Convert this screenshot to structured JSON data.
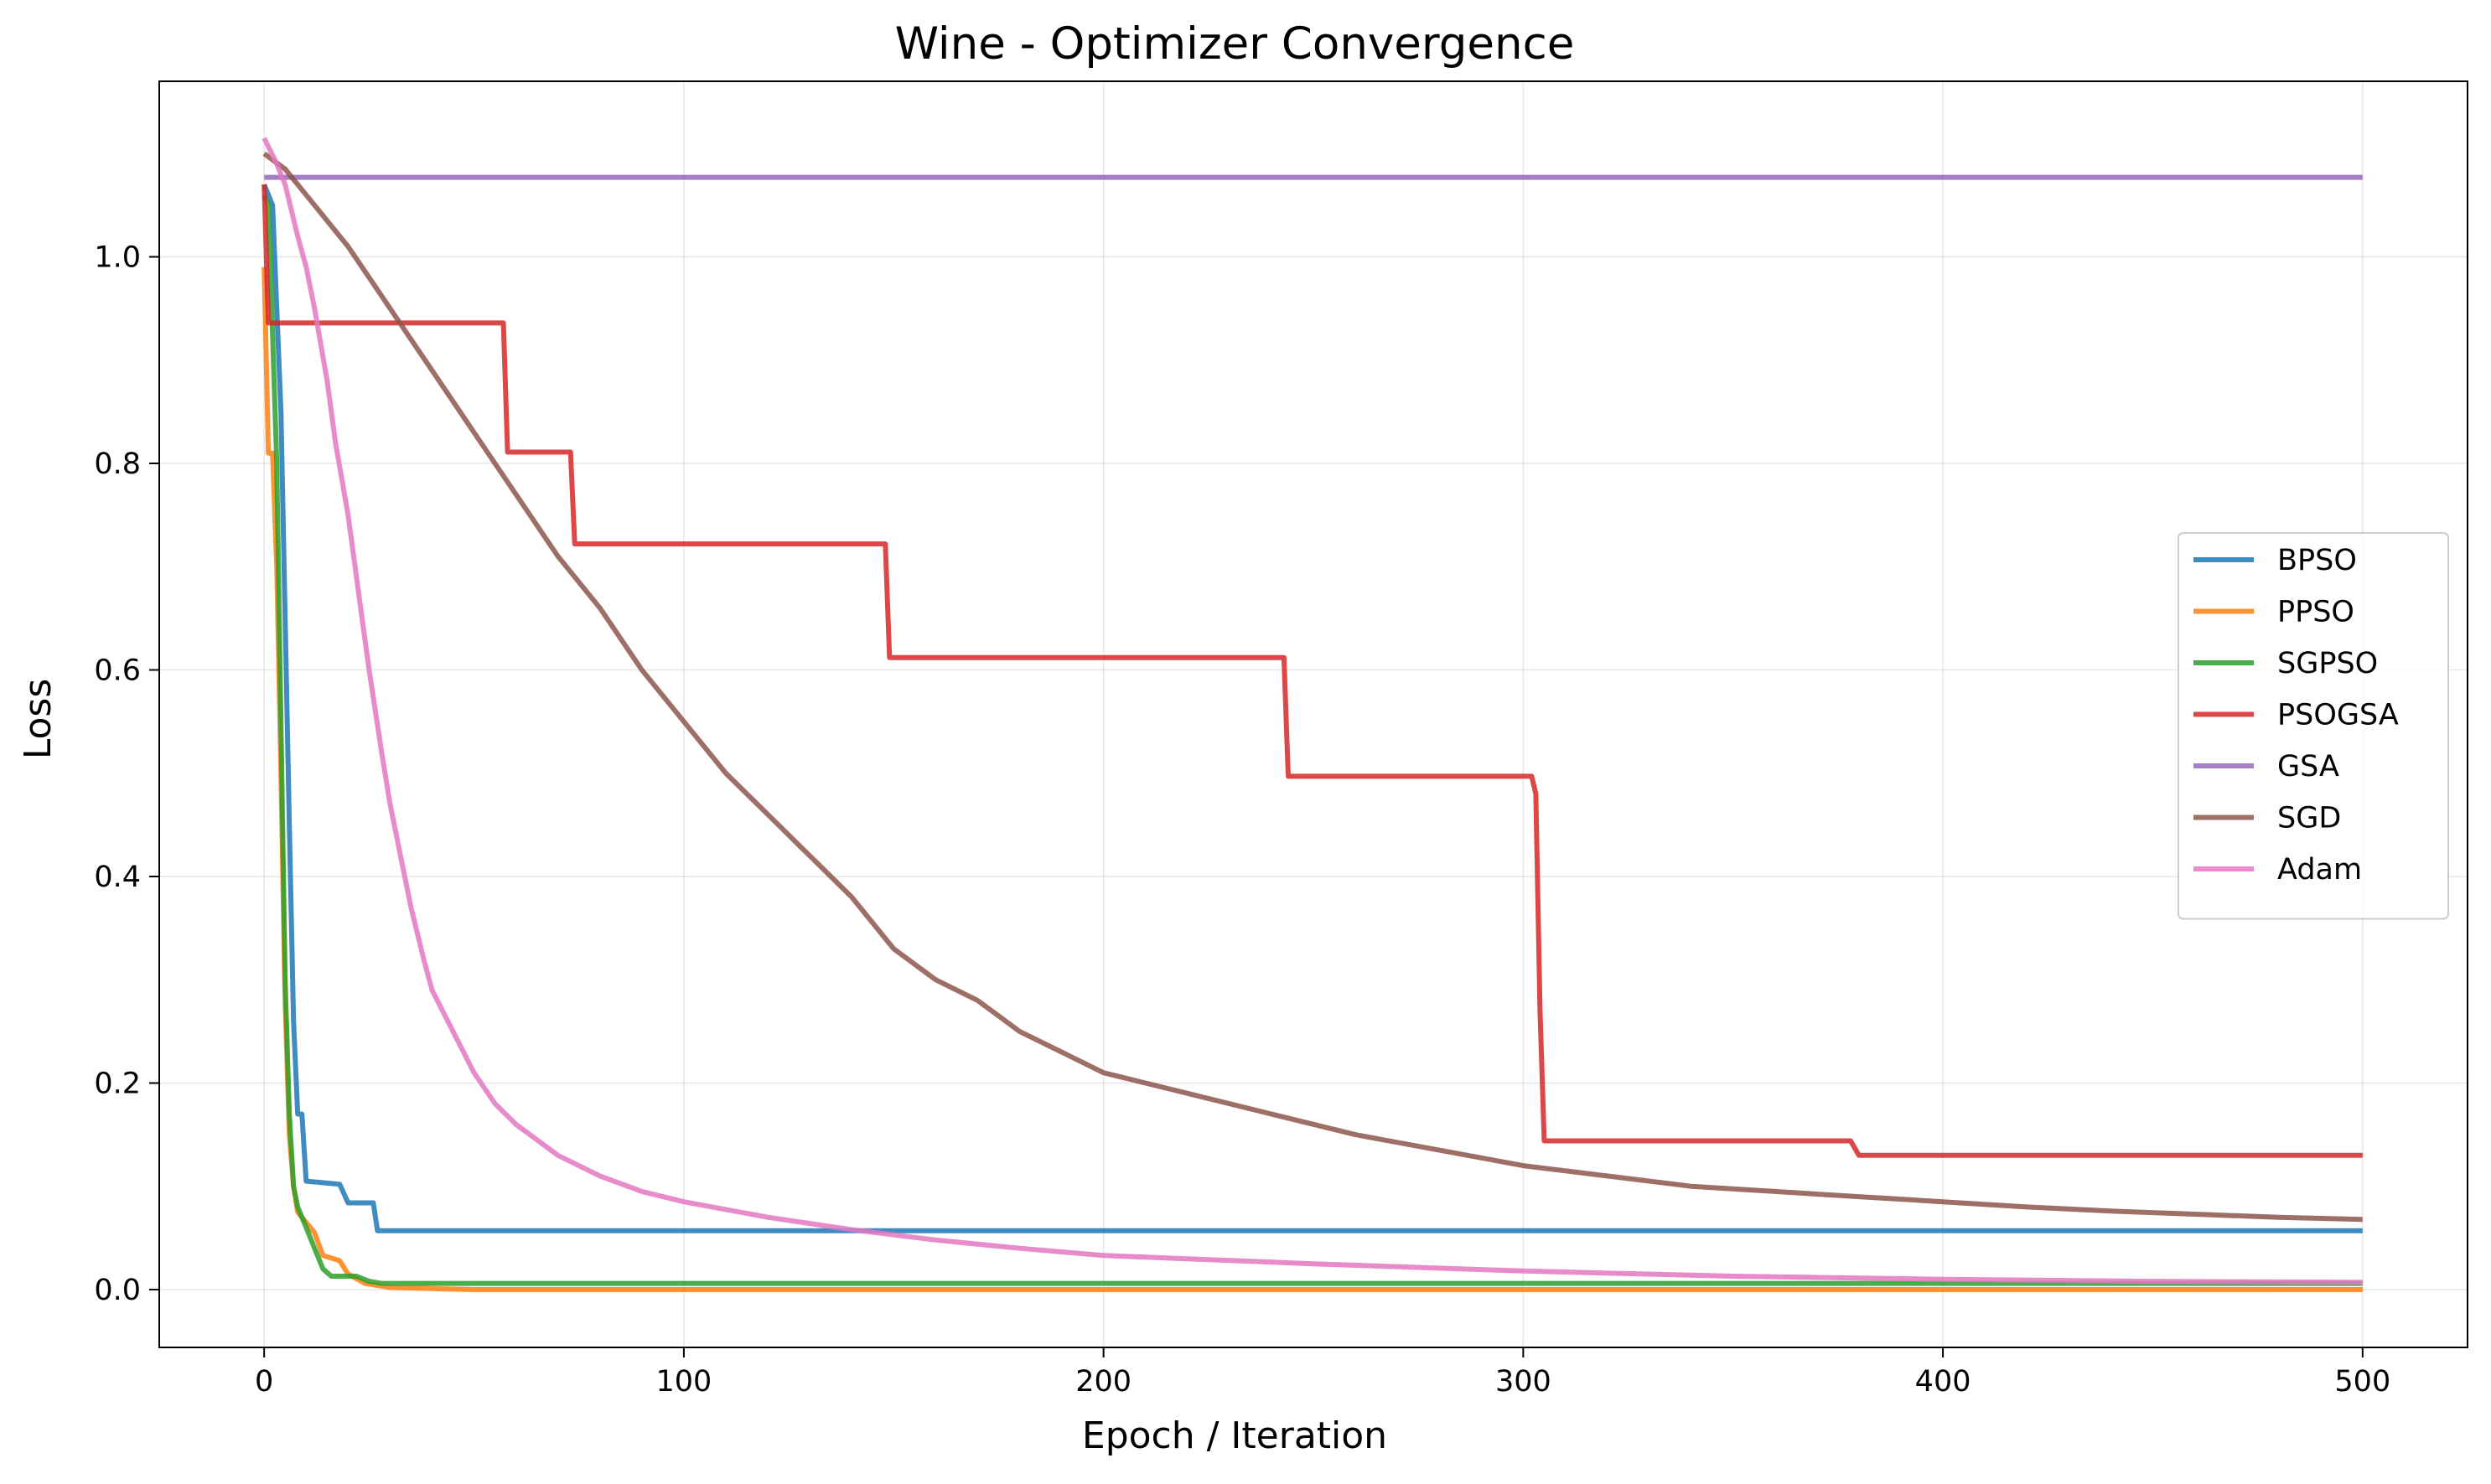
{
  "chart_data": {
    "type": "line",
    "title": "Wine - Optimizer Convergence",
    "xlabel": "Epoch / Iteration",
    "ylabel": "Loss",
    "xlim": [
      -25,
      525
    ],
    "ylim": [
      -0.056,
      1.17
    ],
    "xticks": [
      0,
      100,
      200,
      300,
      400,
      500
    ],
    "xtick_labels": [
      "0",
      "100",
      "200",
      "300",
      "400",
      "500"
    ],
    "yticks": [
      0.0,
      0.2,
      0.4,
      0.6,
      0.8,
      1.0
    ],
    "ytick_labels": [
      "0.0",
      "0.2",
      "0.4",
      "0.6",
      "0.8",
      "1.0"
    ],
    "grid": true,
    "legend_position": "center-right",
    "series": [
      {
        "name": "BPSO",
        "color": "#1f77b4",
        "points": [
          [
            0,
            1.07
          ],
          [
            2,
            1.05
          ],
          [
            4,
            0.85
          ],
          [
            6,
            0.45
          ],
          [
            7,
            0.26
          ],
          [
            8,
            0.17
          ],
          [
            9,
            0.17
          ],
          [
            10,
            0.105
          ],
          [
            18,
            0.102
          ],
          [
            20,
            0.084
          ],
          [
            26,
            0.084
          ],
          [
            27,
            0.057
          ],
          [
            500,
            0.057
          ]
        ]
      },
      {
        "name": "PPSO",
        "color": "#ff7f0e",
        "points": [
          [
            0,
            0.99
          ],
          [
            1,
            0.81
          ],
          [
            2,
            0.81
          ],
          [
            3,
            0.7
          ],
          [
            4,
            0.5
          ],
          [
            5,
            0.28
          ],
          [
            6,
            0.15
          ],
          [
            7,
            0.1
          ],
          [
            8,
            0.075
          ],
          [
            10,
            0.065
          ],
          [
            12,
            0.055
          ],
          [
            14,
            0.033
          ],
          [
            18,
            0.028
          ],
          [
            20,
            0.015
          ],
          [
            24,
            0.006
          ],
          [
            30,
            0.002
          ],
          [
            50,
            0.0
          ],
          [
            500,
            0.0
          ]
        ]
      },
      {
        "name": "SGPSO",
        "color": "#2ca02c",
        "points": [
          [
            0,
            1.06
          ],
          [
            1,
            1.05
          ],
          [
            3,
            0.8
          ],
          [
            4,
            0.55
          ],
          [
            5,
            0.3
          ],
          [
            6,
            0.17
          ],
          [
            7,
            0.1
          ],
          [
            8,
            0.08
          ],
          [
            10,
            0.06
          ],
          [
            12,
            0.04
          ],
          [
            14,
            0.02
          ],
          [
            16,
            0.013
          ],
          [
            22,
            0.013
          ],
          [
            25,
            0.008
          ],
          [
            28,
            0.006
          ],
          [
            500,
            0.006
          ]
        ]
      },
      {
        "name": "PSOGSA",
        "color": "#d62728",
        "points": [
          [
            0,
            1.07
          ],
          [
            1,
            0.936
          ],
          [
            57,
            0.936
          ],
          [
            58,
            0.811
          ],
          [
            73,
            0.811
          ],
          [
            74,
            0.722
          ],
          [
            148,
            0.722
          ],
          [
            149,
            0.612
          ],
          [
            243,
            0.612
          ],
          [
            244,
            0.497
          ],
          [
            302,
            0.497
          ],
          [
            303,
            0.48
          ],
          [
            304,
            0.27
          ],
          [
            305,
            0.144
          ],
          [
            378,
            0.144
          ],
          [
            380,
            0.13
          ],
          [
            500,
            0.13
          ]
        ]
      },
      {
        "name": "GSA",
        "color": "#9467bd",
        "points": [
          [
            0,
            1.077
          ],
          [
            500,
            1.077
          ]
        ]
      },
      {
        "name": "SGD",
        "color": "#8c564b",
        "points": [
          [
            0,
            1.1
          ],
          [
            5,
            1.085
          ],
          [
            10,
            1.06
          ],
          [
            20,
            1.01
          ],
          [
            30,
            0.95
          ],
          [
            40,
            0.89
          ],
          [
            50,
            0.83
          ],
          [
            60,
            0.77
          ],
          [
            70,
            0.71
          ],
          [
            80,
            0.66
          ],
          [
            90,
            0.6
          ],
          [
            100,
            0.55
          ],
          [
            110,
            0.5
          ],
          [
            120,
            0.46
          ],
          [
            130,
            0.42
          ],
          [
            140,
            0.38
          ],
          [
            150,
            0.33
          ],
          [
            160,
            0.3
          ],
          [
            170,
            0.28
          ],
          [
            180,
            0.25
          ],
          [
            190,
            0.23
          ],
          [
            200,
            0.21
          ],
          [
            220,
            0.19
          ],
          [
            240,
            0.17
          ],
          [
            260,
            0.15
          ],
          [
            280,
            0.135
          ],
          [
            300,
            0.12
          ],
          [
            320,
            0.11
          ],
          [
            340,
            0.1
          ],
          [
            360,
            0.095
          ],
          [
            380,
            0.09
          ],
          [
            400,
            0.085
          ],
          [
            420,
            0.08
          ],
          [
            440,
            0.076
          ],
          [
            460,
            0.073
          ],
          [
            480,
            0.07
          ],
          [
            500,
            0.068
          ]
        ]
      },
      {
        "name": "Adam",
        "color": "#e377c2",
        "points": [
          [
            0,
            1.115
          ],
          [
            3,
            1.09
          ],
          [
            5,
            1.07
          ],
          [
            8,
            1.02
          ],
          [
            10,
            0.99
          ],
          [
            12,
            0.95
          ],
          [
            15,
            0.88
          ],
          [
            17,
            0.82
          ],
          [
            20,
            0.75
          ],
          [
            23,
            0.66
          ],
          [
            25,
            0.6
          ],
          [
            28,
            0.52
          ],
          [
            30,
            0.47
          ],
          [
            33,
            0.41
          ],
          [
            35,
            0.37
          ],
          [
            38,
            0.32
          ],
          [
            40,
            0.29
          ],
          [
            45,
            0.25
          ],
          [
            50,
            0.21
          ],
          [
            55,
            0.18
          ],
          [
            60,
            0.16
          ],
          [
            70,
            0.13
          ],
          [
            80,
            0.11
          ],
          [
            90,
            0.095
          ],
          [
            100,
            0.085
          ],
          [
            120,
            0.07
          ],
          [
            140,
            0.058
          ],
          [
            160,
            0.048
          ],
          [
            180,
            0.04
          ],
          [
            200,
            0.033
          ],
          [
            250,
            0.025
          ],
          [
            300,
            0.018
          ],
          [
            350,
            0.013
          ],
          [
            400,
            0.01
          ],
          [
            450,
            0.008
          ],
          [
            500,
            0.007
          ]
        ]
      }
    ]
  }
}
